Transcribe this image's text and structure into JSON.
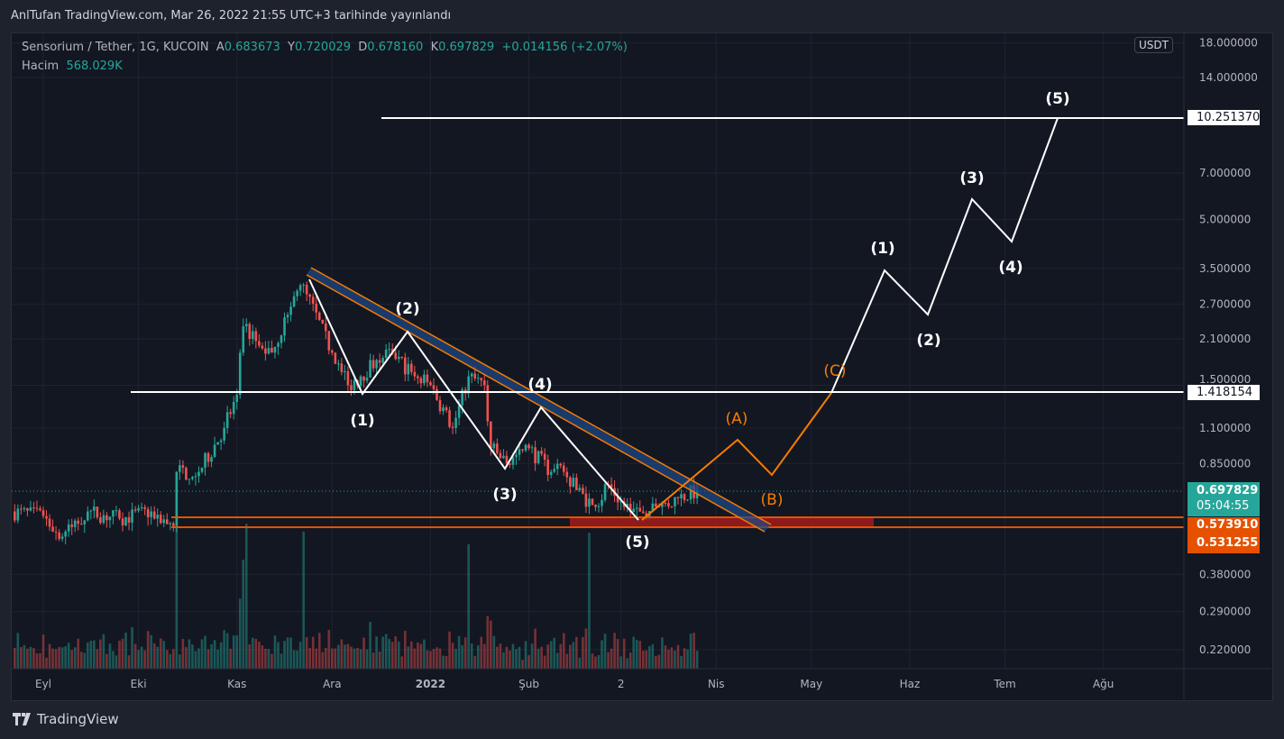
{
  "publish_line": "AnlTufan TradingView.com, Mar 26, 2022 21:55 UTC+3 tarihinde yayınlandı",
  "legend": {
    "symbol": "Sensorium / Tether, 1G, KUCOIN",
    "open_label": "A",
    "open": "0.683673",
    "high_label": "Y",
    "high": "0.720029",
    "low_label": "D",
    "low": "0.678160",
    "close_label": "K",
    "close": "0.697829",
    "change": "+0.014156 (+2.07%)",
    "volume_label": "Hacim",
    "volume": "568.029K"
  },
  "currency": "USDT",
  "price_labels": {
    "target_high": "10.251370",
    "resistance": "1.418154",
    "last_price": "0.697829",
    "countdown": "05:04:55",
    "support_top": "0.573910",
    "support_bottom": "0.531255"
  },
  "wave_labels": {
    "past": [
      "(1)",
      "(2)",
      "(3)",
      "(4)",
      "(5)"
    ],
    "corrective": [
      "(A)",
      "(B)",
      "(C)"
    ],
    "future": [
      "(1)",
      "(2)",
      "(3)",
      "(4)",
      "(5)"
    ]
  },
  "brand": "TradingView",
  "colors": {
    "up": "#26a69a",
    "down": "#ef5350",
    "orange": "#f57c00",
    "support": "#e65100",
    "white": "#ffffff"
  },
  "chart_data": {
    "type": "candlestick",
    "title": "Sensorium / Tether, 1G, KUCOIN",
    "scale": "log",
    "ylim": [
      0.2,
      18
    ],
    "y_ticks": [
      18,
      14,
      7,
      5,
      3.5,
      2.7,
      2.1,
      1.5,
      1.1,
      0.85,
      0.38,
      0.29,
      0.22
    ],
    "y_tick_labels": [
      "18.000000",
      "14.000000",
      "7.000000",
      "5.000000",
      "3.500000",
      "2.700000",
      "2.100000",
      "1.500000",
      "1.100000",
      "0.850000",
      "0.380000",
      "0.290000",
      "0.220000"
    ],
    "x_ticks": [
      {
        "date": "2021-09-01",
        "label": "Eyl"
      },
      {
        "date": "2021-10-01",
        "label": "Eki"
      },
      {
        "date": "2021-11-01",
        "label": "Kas"
      },
      {
        "date": "2021-12-01",
        "label": "Ara"
      },
      {
        "date": "2022-01-01",
        "label": "2022",
        "bold": true
      },
      {
        "date": "2022-02-01",
        "label": "Şub"
      },
      {
        "date": "2022-03-02",
        "label": "2"
      },
      {
        "date": "2022-04-01",
        "label": "Nis"
      },
      {
        "date": "2022-05-01",
        "label": "May"
      },
      {
        "date": "2022-06-01",
        "label": "Haz"
      },
      {
        "date": "2022-07-01",
        "label": "Tem"
      },
      {
        "date": "2022-08-01",
        "label": "Ağu"
      }
    ],
    "price_path": [
      [
        "2021-08-22",
        0.6
      ],
      [
        "2021-09-01",
        0.58
      ],
      [
        "2021-09-07",
        0.5
      ],
      [
        "2021-09-15",
        0.6
      ],
      [
        "2021-09-25",
        0.57
      ],
      [
        "2021-10-05",
        0.6
      ],
      [
        "2021-10-12",
        0.54
      ],
      [
        "2021-10-13",
        0.8
      ],
      [
        "2021-10-20",
        0.8
      ],
      [
        "2021-10-28",
        1.1
      ],
      [
        "2021-11-01",
        1.4
      ],
      [
        "2021-11-03",
        2.3
      ],
      [
        "2021-11-08",
        2.0
      ],
      [
        "2021-11-12",
        1.9
      ],
      [
        "2021-11-17",
        2.5
      ],
      [
        "2021-11-21",
        3.1
      ],
      [
        "2021-11-23",
        2.9
      ],
      [
        "2021-12-01",
        1.9
      ],
      [
        "2021-12-06",
        1.5
      ],
      [
        "2021-12-10",
        1.6
      ],
      [
        "2021-12-15",
        1.8
      ],
      [
        "2021-12-20",
        1.9
      ],
      [
        "2021-12-27",
        1.6
      ],
      [
        "2022-01-01",
        1.5
      ],
      [
        "2022-01-08",
        1.1
      ],
      [
        "2022-01-13",
        1.6
      ],
      [
        "2022-01-18",
        1.5
      ],
      [
        "2022-01-20",
        0.95
      ],
      [
        "2022-01-25",
        0.85
      ],
      [
        "2022-02-01",
        0.95
      ],
      [
        "2022-02-08",
        0.8
      ],
      [
        "2022-02-12",
        0.8
      ],
      [
        "2022-02-16",
        0.7
      ],
      [
        "2022-02-22",
        0.62
      ],
      [
        "2022-02-26",
        0.73
      ],
      [
        "2022-03-03",
        0.62
      ],
      [
        "2022-03-08",
        0.6
      ],
      [
        "2022-03-14",
        0.62
      ],
      [
        "2022-03-20",
        0.66
      ],
      [
        "2022-03-26",
        0.697829
      ]
    ],
    "volume_spikes": [
      "2021-10-13",
      "2021-11-03",
      "2021-11-04",
      "2021-11-22",
      "2022-01-13",
      "2022-02-20"
    ],
    "last_volume": "568.029K"
  }
}
